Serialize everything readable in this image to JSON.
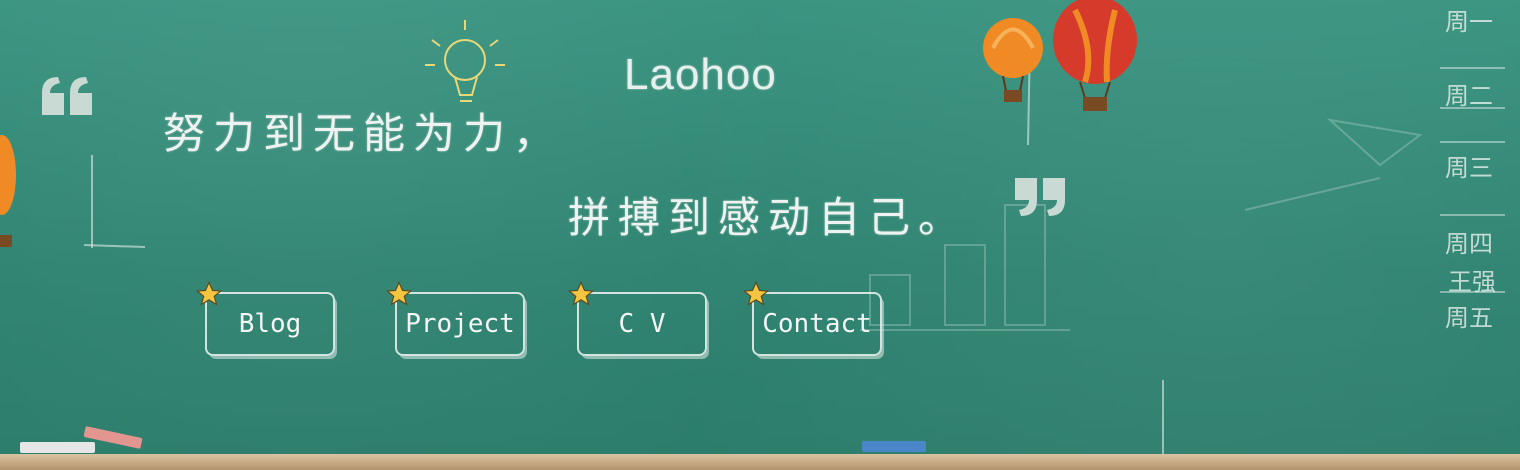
{
  "header": {
    "title": "Laohoo"
  },
  "slogan": {
    "line1": "努力到无能为力，",
    "line2": "拼搏到感动自己。"
  },
  "nav": {
    "blog": "Blog",
    "project": "Project",
    "cv": "C V",
    "contact": "Contact"
  },
  "side_schedule": [
    "周一",
    "周二",
    "周三",
    "周四",
    "王强",
    "周五"
  ],
  "colors": {
    "board": "#2f8571",
    "chalk": "#eef3f1",
    "star": "#f5c542",
    "balloon_red": "#d63a2a",
    "balloon_orange": "#f08a24"
  }
}
